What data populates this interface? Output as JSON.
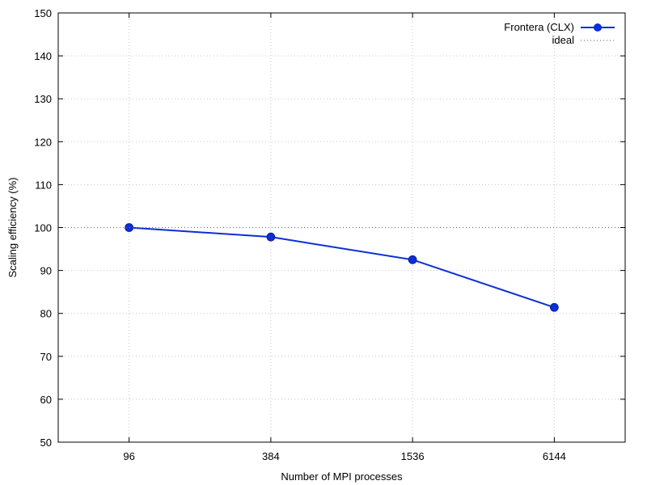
{
  "chart_data": {
    "type": "line",
    "categories": [
      "96",
      "384",
      "1536",
      "6144"
    ],
    "series": [
      {
        "name": "Frontera (CLX)",
        "values": [
          100,
          97.8,
          92.5,
          81.4
        ],
        "color": "#0a2fd6",
        "marker": "circle"
      },
      {
        "name": "ideal",
        "values": [
          100,
          100,
          100,
          100
        ],
        "color": "#777777",
        "style": "dotted",
        "full_width": true
      }
    ],
    "xlabel": "Number of MPI processes",
    "ylabel": "Scaling efficiency (%)",
    "ylim": [
      50,
      150
    ],
    "yticks": [
      50,
      60,
      70,
      80,
      90,
      100,
      110,
      120,
      130,
      140,
      150
    ],
    "grid": true,
    "legend_position": "top-right"
  }
}
